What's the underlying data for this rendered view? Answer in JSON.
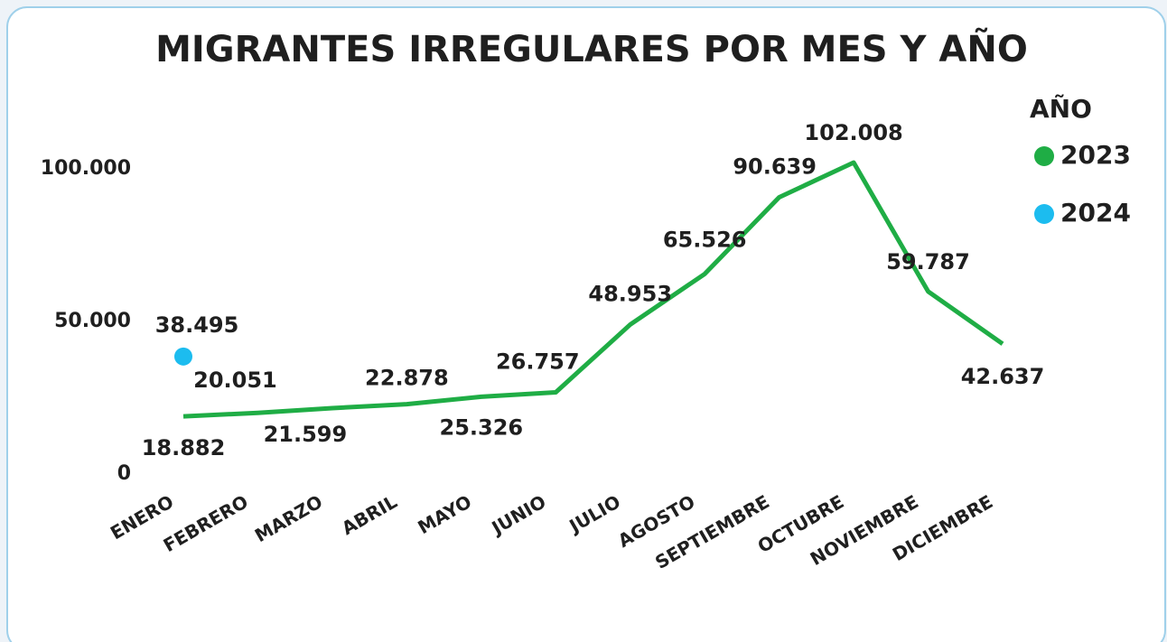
{
  "chart_data": {
    "type": "line",
    "title": "MIGRANTES IRREGULARES POR MES Y AÑO",
    "legend_title": "AÑO",
    "legend": "right",
    "grid": false,
    "categories": [
      "ENERO",
      "FEBRERO",
      "MARZO",
      "ABRIL",
      "MAYO",
      "JUNIO",
      "JULIO",
      "AGOSTO",
      "SEPTIEMBRE",
      "OCTUBRE",
      "NOVIEMBRE",
      "DICIEMBRE"
    ],
    "series": [
      {
        "name": "2023",
        "color": "#1fad45",
        "values": [
          18882,
          20051,
          21599,
          22878,
          25326,
          26757,
          48953,
          65526,
          90639,
          102008,
          59787,
          42637
        ],
        "value_labels": [
          "18.882",
          "20.051",
          "21.599",
          "22.878",
          "25.326",
          "26.757",
          "48.953",
          "65.526",
          "90.639",
          "102.008",
          "59.787",
          "42.637"
        ]
      },
      {
        "name": "2024",
        "color": "#1cbcef",
        "values": [
          38495,
          null,
          null,
          null,
          null,
          null,
          null,
          null,
          null,
          null,
          null,
          null
        ],
        "value_labels": [
          "38.495",
          null,
          null,
          null,
          null,
          null,
          null,
          null,
          null,
          null,
          null,
          null
        ]
      }
    ],
    "ylim": [
      0,
      110000
    ],
    "yticks": [
      0,
      {
        "value": 50000,
        "label": "50.000"
      },
      {
        "value": 100000,
        "label": "100.000"
      }
    ]
  }
}
